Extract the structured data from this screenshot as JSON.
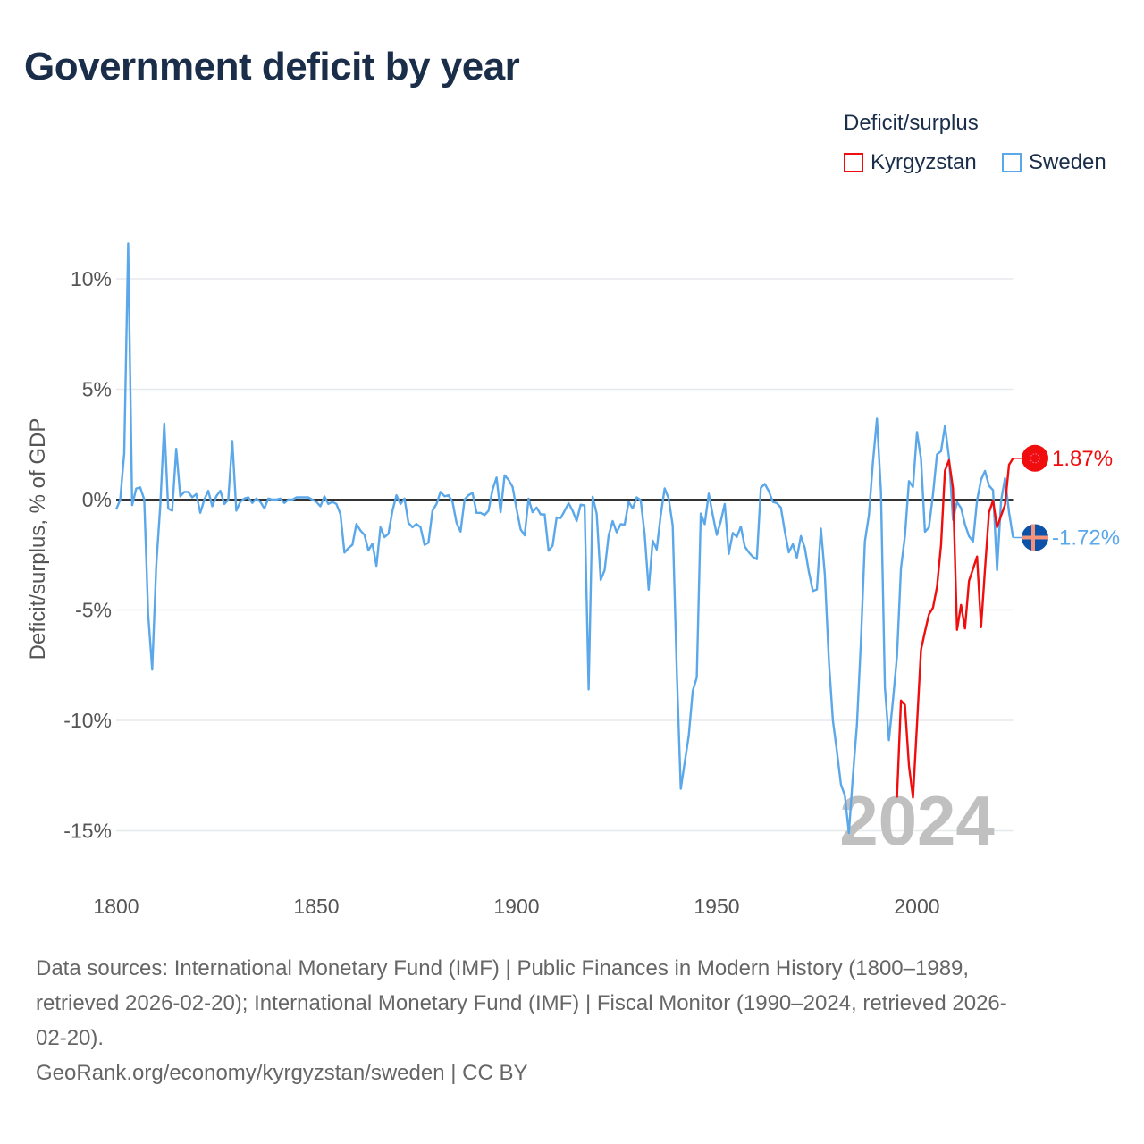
{
  "title": "Government deficit by year",
  "legend": {
    "title": "Deficit/surplus",
    "items": [
      {
        "label": "Kyrgyzstan",
        "color": "#f00d0d"
      },
      {
        "label": "Sweden",
        "color": "#5aa7ea"
      }
    ]
  },
  "chart_data": {
    "type": "line",
    "title": "Government deficit by year",
    "xlabel": "",
    "ylabel": "Deficit/surplus, % of GDP",
    "xlim": [
      1800,
      2024
    ],
    "ylim": [
      -17,
      12
    ],
    "x_ticks": [
      1800,
      1850,
      1900,
      1950,
      2000
    ],
    "x_tick_labels": [
      "1800",
      "1850",
      "1900",
      "1950",
      "2000"
    ],
    "y_ticks": [
      10,
      5,
      0,
      -5,
      -10,
      -15
    ],
    "y_tick_labels": [
      "10%",
      "5%",
      "0%",
      "-5%",
      "-10%",
      "-15%"
    ],
    "grid": true,
    "legend_position": "top-right",
    "current_year_label": "2024",
    "series": [
      {
        "name": "Kyrgyzstan",
        "color": "#f00d0d",
        "start_year": 1995,
        "values": [
          -13.5,
          -9.1,
          -9.3,
          -12.05,
          -13.5,
          -10.2,
          -6.8,
          -5.98,
          -5.2,
          -4.9,
          -3.95,
          -2.06,
          1.31,
          1.78,
          0.5,
          -5.9,
          -4.77,
          -5.84,
          -3.68,
          -3.14,
          -2.58,
          -5.78,
          -3.14,
          -0.58,
          -0.04,
          -1.25,
          -0.72,
          -0.24,
          1.58,
          1.87
        ],
        "end_label": "1.87%",
        "end_value": 1.87
      },
      {
        "name": "Sweden",
        "color": "#5aa7ea",
        "start_year": 1800,
        "values": [
          -0.45,
          0,
          2.1,
          11.6,
          -0.25,
          0.5,
          0.55,
          0,
          -5.2,
          -7.7,
          -3.0,
          -0.3,
          3.45,
          -0.4,
          -0.5,
          2.3,
          0.15,
          0.35,
          0.35,
          0.1,
          0.25,
          -0.6,
          0,
          0.4,
          -0.3,
          0.15,
          0.4,
          -0.2,
          0,
          2.65,
          -0.5,
          -0.1,
          0.05,
          0.1,
          -0.15,
          0.05,
          -0.1,
          -0.4,
          0.05,
          0,
          0,
          0.05,
          -0.15,
          0,
          0,
          0.1,
          0.1,
          0.1,
          0.1,
          0,
          -0.1,
          -0.3,
          0.15,
          -0.2,
          -0.1,
          -0.2,
          -0.65,
          -2.4,
          -2.2,
          -2.05,
          -1.1,
          -1.4,
          -1.6,
          -2.3,
          -2.0,
          -3.0,
          -1.25,
          -1.7,
          -1.55,
          -0.5,
          0.2,
          -0.2,
          0.05,
          -1.05,
          -1.25,
          -1.1,
          -1.25,
          -2.05,
          -1.95,
          -0.5,
          -0.2,
          0.35,
          0.15,
          0.2,
          -0.1,
          -1.05,
          -1.45,
          0,
          0.2,
          0.3,
          -0.6,
          -0.6,
          -0.7,
          -0.5,
          0.45,
          1.0,
          -0.57,
          1.1,
          0.9,
          0.58,
          -0.43,
          -1.35,
          -1.62,
          0.04,
          -0.57,
          -0.36,
          -0.67,
          -0.67,
          -2.32,
          -2.09,
          -0.81,
          -0.84,
          -0.5,
          -0.16,
          -0.5,
          -0.97,
          -0.23,
          -0.26,
          -8.6,
          0.13,
          -0.63,
          -3.64,
          -3.2,
          -1.62,
          -0.97,
          -1.48,
          -1.11,
          -1.13,
          -0.1,
          -0.4,
          0.1,
          -0.03,
          -1.57,
          -4.08,
          -1.86,
          -2.26,
          -0.7,
          0.51,
          0.04,
          -1.18,
          -7.72,
          -13.1,
          -11.9,
          -10.7,
          -8.66,
          -8.06,
          -0.63,
          -1.11,
          0.27,
          -0.7,
          -1.6,
          -0.97,
          -0.2,
          -2.46,
          -1.51,
          -1.69,
          -1.22,
          -2.12,
          -2.39,
          -2.59,
          -2.7,
          0.54,
          0.71,
          0.38,
          -0.1,
          -0.16,
          -0.36,
          -1.44,
          -2.39,
          -2.02,
          -2.63,
          -1.65,
          -2.19,
          -3.27,
          -4.14,
          -4.07,
          -1.31,
          -3.4,
          -7.3,
          -10.0,
          -11.4,
          -12.9,
          -13.4,
          -15.1,
          -12.5,
          -10.2,
          -6.4,
          -1.9,
          -0.7,
          1.7,
          3.67,
          0.36,
          -8.5,
          -10.9,
          -9.1,
          -7.1,
          -3.1,
          -1.66,
          0.84,
          0.57,
          3.06,
          1.85,
          -1.46,
          -1.26,
          0.23,
          2.05,
          2.19,
          3.33,
          1.92,
          -0.92,
          -0.11,
          -0.38,
          -1.12,
          -1.66,
          -1.9,
          -0.04,
          0.9,
          1.3,
          0.63,
          0.43,
          -3.2,
          -0.04,
          0.97,
          -0.58,
          -1.72
        ],
        "end_label": "-1.72%",
        "end_value": -1.72
      }
    ]
  },
  "footer": {
    "source_lines": [
      "Data sources: International Monetary Fund (IMF) | Public Finances in Modern History (1800–1989,",
      "retrieved 2026-02-20); International Monetary Fund (IMF) | Fiscal Monitor (1990–2024, retrieved 2026-",
      "02-20)."
    ],
    "attribution": "GeoRank.org/economy/kyrgyzstan/sweden | CC BY"
  }
}
